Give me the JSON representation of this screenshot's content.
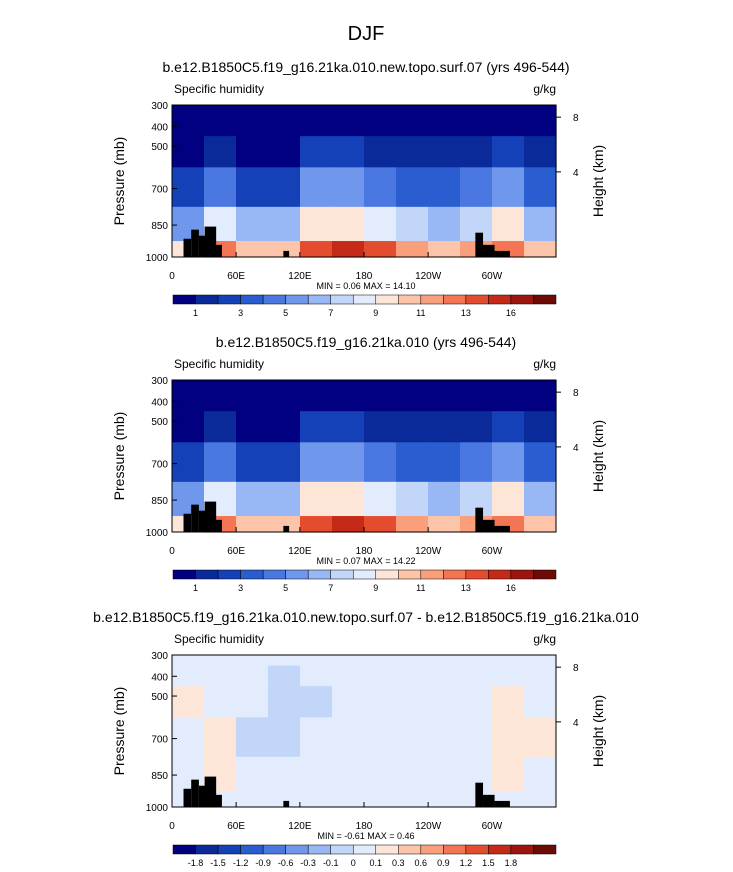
{
  "figure": {
    "title": "DJF"
  },
  "chart_data": [
    {
      "type": "heatmap",
      "title": "b.e12.B1850C5.f19_g16.21ka.010.new.topo.surf.07 (yrs 496-544)",
      "left_label": "Specific humidity",
      "right_label": "g/kg",
      "ylabel": "Pressure (mb)",
      "ylabel_right": "Height (km)",
      "y_ticks": [
        "300",
        "400",
        "500",
        "700",
        "850",
        "1000"
      ],
      "y_ticks_right": [
        "8",
        "4"
      ],
      "x_ticks": [
        "0",
        "60E",
        "120E",
        "180",
        "120W",
        "60W"
      ],
      "stats": "MIN =  0.06  MAX =  14.10",
      "colorbar": {
        "labels": [
          "1",
          "3",
          "5",
          "7",
          "9",
          "11",
          "13",
          "16"
        ],
        "colors": [
          "#000080",
          "#0a2a9a",
          "#1440b8",
          "#2a5dd0",
          "#4a78e0",
          "#6f97ec",
          "#99b7f4",
          "#c2d6fa",
          "#e2ecfd",
          "#fde5d8",
          "#fcc4a8",
          "#f99f7c",
          "#f37553",
          "#e44c30",
          "#c52a18",
          "#9c150e",
          "#6e0a06"
        ]
      },
      "min": 0.06,
      "max": 14.1,
      "x": [
        "0",
        "30E",
        "60E",
        "90E",
        "120E",
        "150E",
        "180",
        "150W",
        "120W",
        "90W",
        "60W",
        "30W"
      ],
      "y": [
        "300",
        "400",
        "500",
        "700",
        "850",
        "1000"
      ],
      "z": [
        [
          0.1,
          0.2,
          0.1,
          0.1,
          0.3,
          0.3,
          0.2,
          0.1,
          0.1,
          0.1,
          0.2,
          0.1
        ],
        [
          0.3,
          0.6,
          0.3,
          0.3,
          0.9,
          0.9,
          0.7,
          0.5,
          0.4,
          0.6,
          0.8,
          0.4
        ],
        [
          0.8,
          1.6,
          0.8,
          0.8,
          2.2,
          2.1,
          1.8,
          1.4,
          1.1,
          1.6,
          2.1,
          1.1
        ],
        [
          2.5,
          4.5,
          2.8,
          2.7,
          5.4,
          5.2,
          4.6,
          3.8,
          3.2,
          4.2,
          5.2,
          3.2
        ],
        [
          5.5,
          8.5,
          6.8,
          6.4,
          9.4,
          9.2,
          8.4,
          7.4,
          6.6,
          7.8,
          9.0,
          6.6
        ],
        [
          9.0,
          12.0,
          10.8,
          10.4,
          13.4,
          14.1,
          13.0,
          11.6,
          10.2,
          11.0,
          12.0,
          10.2
        ]
      ]
    },
    {
      "type": "heatmap",
      "title": "b.e12.B1850C5.f19_g16.21ka.010 (yrs 496-544)",
      "left_label": "Specific humidity",
      "right_label": "g/kg",
      "ylabel": "Pressure (mb)",
      "ylabel_right": "Height (km)",
      "y_ticks": [
        "300",
        "400",
        "500",
        "700",
        "850",
        "1000"
      ],
      "y_ticks_right": [
        "8",
        "4"
      ],
      "x_ticks": [
        "0",
        "60E",
        "120E",
        "180",
        "120W",
        "60W"
      ],
      "stats": "MIN =  0.07  MAX =  14.22",
      "colorbar": {
        "labels": [
          "1",
          "3",
          "5",
          "7",
          "9",
          "11",
          "13",
          "16"
        ],
        "colors": [
          "#000080",
          "#0a2a9a",
          "#1440b8",
          "#2a5dd0",
          "#4a78e0",
          "#6f97ec",
          "#99b7f4",
          "#c2d6fa",
          "#e2ecfd",
          "#fde5d8",
          "#fcc4a8",
          "#f99f7c",
          "#f37553",
          "#e44c30",
          "#c52a18",
          "#9c150e",
          "#6e0a06"
        ]
      },
      "min": 0.07,
      "max": 14.22,
      "x": [
        "0",
        "30E",
        "60E",
        "90E",
        "120E",
        "150E",
        "180",
        "150W",
        "120W",
        "90W",
        "60W",
        "30W"
      ],
      "y": [
        "300",
        "400",
        "500",
        "700",
        "850",
        "1000"
      ],
      "z": [
        [
          0.1,
          0.2,
          0.1,
          0.1,
          0.3,
          0.3,
          0.2,
          0.1,
          0.1,
          0.1,
          0.2,
          0.1
        ],
        [
          0.3,
          0.6,
          0.3,
          0.3,
          0.9,
          0.9,
          0.7,
          0.5,
          0.4,
          0.6,
          0.8,
          0.4
        ],
        [
          0.8,
          1.6,
          0.8,
          0.8,
          2.2,
          2.1,
          1.8,
          1.4,
          1.1,
          1.6,
          2.1,
          1.1
        ],
        [
          2.5,
          4.5,
          2.8,
          2.7,
          5.4,
          5.2,
          4.6,
          3.8,
          3.2,
          4.2,
          5.2,
          3.2
        ],
        [
          5.5,
          8.5,
          6.8,
          6.4,
          9.4,
          9.2,
          8.4,
          7.4,
          6.6,
          7.8,
          9.0,
          6.6
        ],
        [
          9.0,
          12.0,
          10.8,
          10.4,
          13.5,
          14.2,
          13.1,
          11.7,
          10.3,
          11.1,
          12.1,
          10.3
        ]
      ]
    },
    {
      "type": "heatmap",
      "title": "b.e12.B1850C5.f19_g16.21ka.010.new.topo.surf.07 - b.e12.B1850C5.f19_g16.21ka.010",
      "left_label": "Specific humidity",
      "right_label": "g/kg",
      "ylabel": "Pressure (mb)",
      "ylabel_right": "Height (km)",
      "y_ticks": [
        "300",
        "400",
        "500",
        "700",
        "850",
        "1000"
      ],
      "y_ticks_right": [
        "8",
        "4"
      ],
      "x_ticks": [
        "0",
        "60E",
        "120E",
        "180",
        "120W",
        "60W"
      ],
      "stats": "MIN = -0.61  MAX =  0.46",
      "colorbar": {
        "labels": [
          "-1.8",
          "-1.5",
          "-1.2",
          "-0.9",
          "-0.6",
          "-0.3",
          "-0.1",
          "0",
          "0.1",
          "0.3",
          "0.6",
          "0.9",
          "1.2",
          "1.5",
          "1.8"
        ],
        "colors": [
          "#000080",
          "#0a2a9a",
          "#1440b8",
          "#2a5dd0",
          "#4a78e0",
          "#6f97ec",
          "#99b7f4",
          "#c2d6fa",
          "#e2ecfd",
          "#fde5d8",
          "#fcc4a8",
          "#f99f7c",
          "#f37553",
          "#e44c30",
          "#c52a18",
          "#9c150e",
          "#6e0a06"
        ]
      },
      "min": -0.61,
      "max": 0.46,
      "x": [
        "0",
        "30E",
        "60E",
        "90E",
        "120E",
        "150E",
        "180",
        "150W",
        "120W",
        "90W",
        "60W",
        "30W"
      ],
      "y": [
        "300",
        "400",
        "500",
        "700",
        "850",
        "1000"
      ],
      "z": [
        [
          0.05,
          0.02,
          -0.03,
          -0.05,
          -0.04,
          -0.03,
          -0.02,
          0.03,
          -0.02,
          -0.03,
          0.06,
          0.04
        ],
        [
          0.1,
          0.04,
          -0.06,
          -0.12,
          -0.08,
          -0.05,
          -0.02,
          0.06,
          -0.03,
          -0.05,
          0.09,
          0.06
        ],
        [
          0.12,
          0.1,
          -0.1,
          -0.2,
          -0.12,
          -0.06,
          0.02,
          0.08,
          -0.04,
          -0.06,
          0.14,
          0.08
        ],
        [
          0.08,
          0.26,
          -0.12,
          -0.18,
          -0.1,
          -0.04,
          0.03,
          0.06,
          -0.05,
          -0.04,
          0.12,
          0.16
        ],
        [
          0.05,
          0.18,
          -0.08,
          -0.1,
          -0.06,
          0.02,
          0.05,
          0.04,
          -0.06,
          -0.03,
          0.16,
          0.1
        ],
        [
          0.04,
          0.1,
          -0.03,
          -0.04,
          -0.02,
          -0.01,
          0.02,
          0.01,
          -0.03,
          -0.02,
          0.05,
          0.03
        ]
      ]
    }
  ]
}
